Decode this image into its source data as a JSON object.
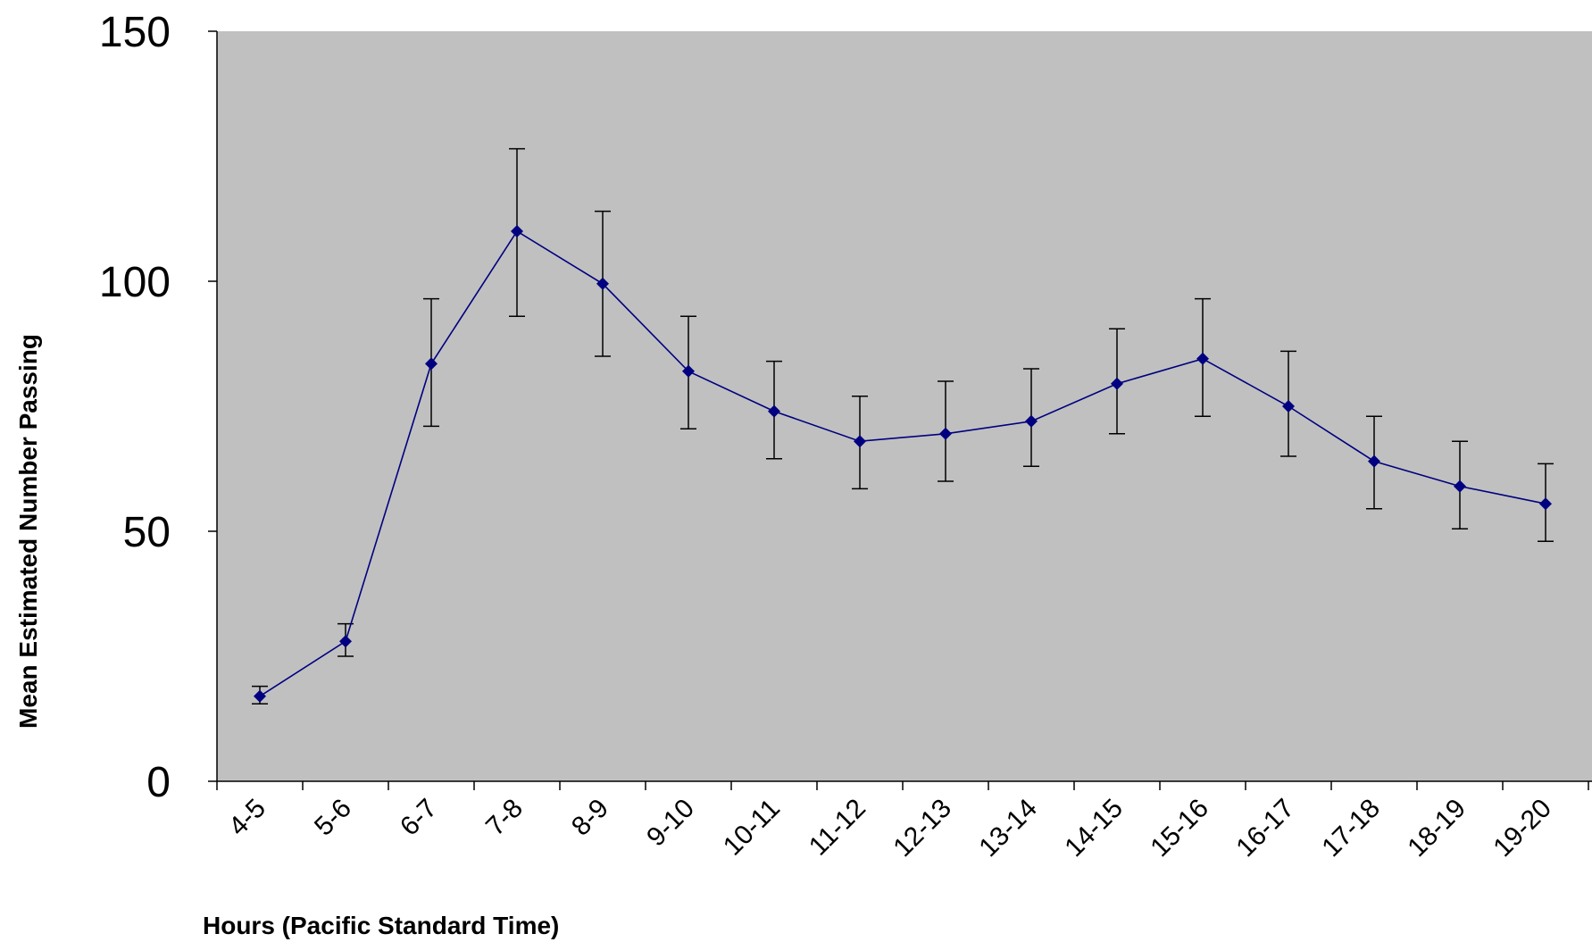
{
  "chart_data": {
    "type": "line",
    "title": "",
    "xlabel": "Hours (Pacific Standard Time)",
    "ylabel": "Mean Estimated Number Passing",
    "ylim": [
      0,
      150
    ],
    "yticks": [
      "0",
      "50",
      "100",
      "150"
    ],
    "grid": false,
    "plot_background": "#C0C0C0",
    "line_color": "#000080",
    "categories": [
      "4-5",
      "5-6",
      "6-7",
      "7-8",
      "8-9",
      "9-10",
      "10-11",
      "11-12",
      "12-13",
      "13-14",
      "14-15",
      "15-16",
      "16-17",
      "17-18",
      "18-19",
      "19-20"
    ],
    "series": [
      {
        "values": [
          17,
          28,
          83.5,
          110,
          99.5,
          82,
          74,
          68,
          69.5,
          72,
          79.5,
          84.5,
          75,
          64,
          59,
          55.5
        ],
        "error_low": [
          15.5,
          25,
          71,
          93,
          85,
          70.5,
          64.5,
          58.5,
          60,
          63,
          69.5,
          73,
          65,
          54.5,
          50.5,
          48
        ],
        "error_high": [
          19,
          31.5,
          96.5,
          126.5,
          114,
          93,
          84,
          77,
          80,
          82.5,
          90.5,
          96.5,
          86,
          73,
          68,
          63.5
        ]
      }
    ]
  }
}
